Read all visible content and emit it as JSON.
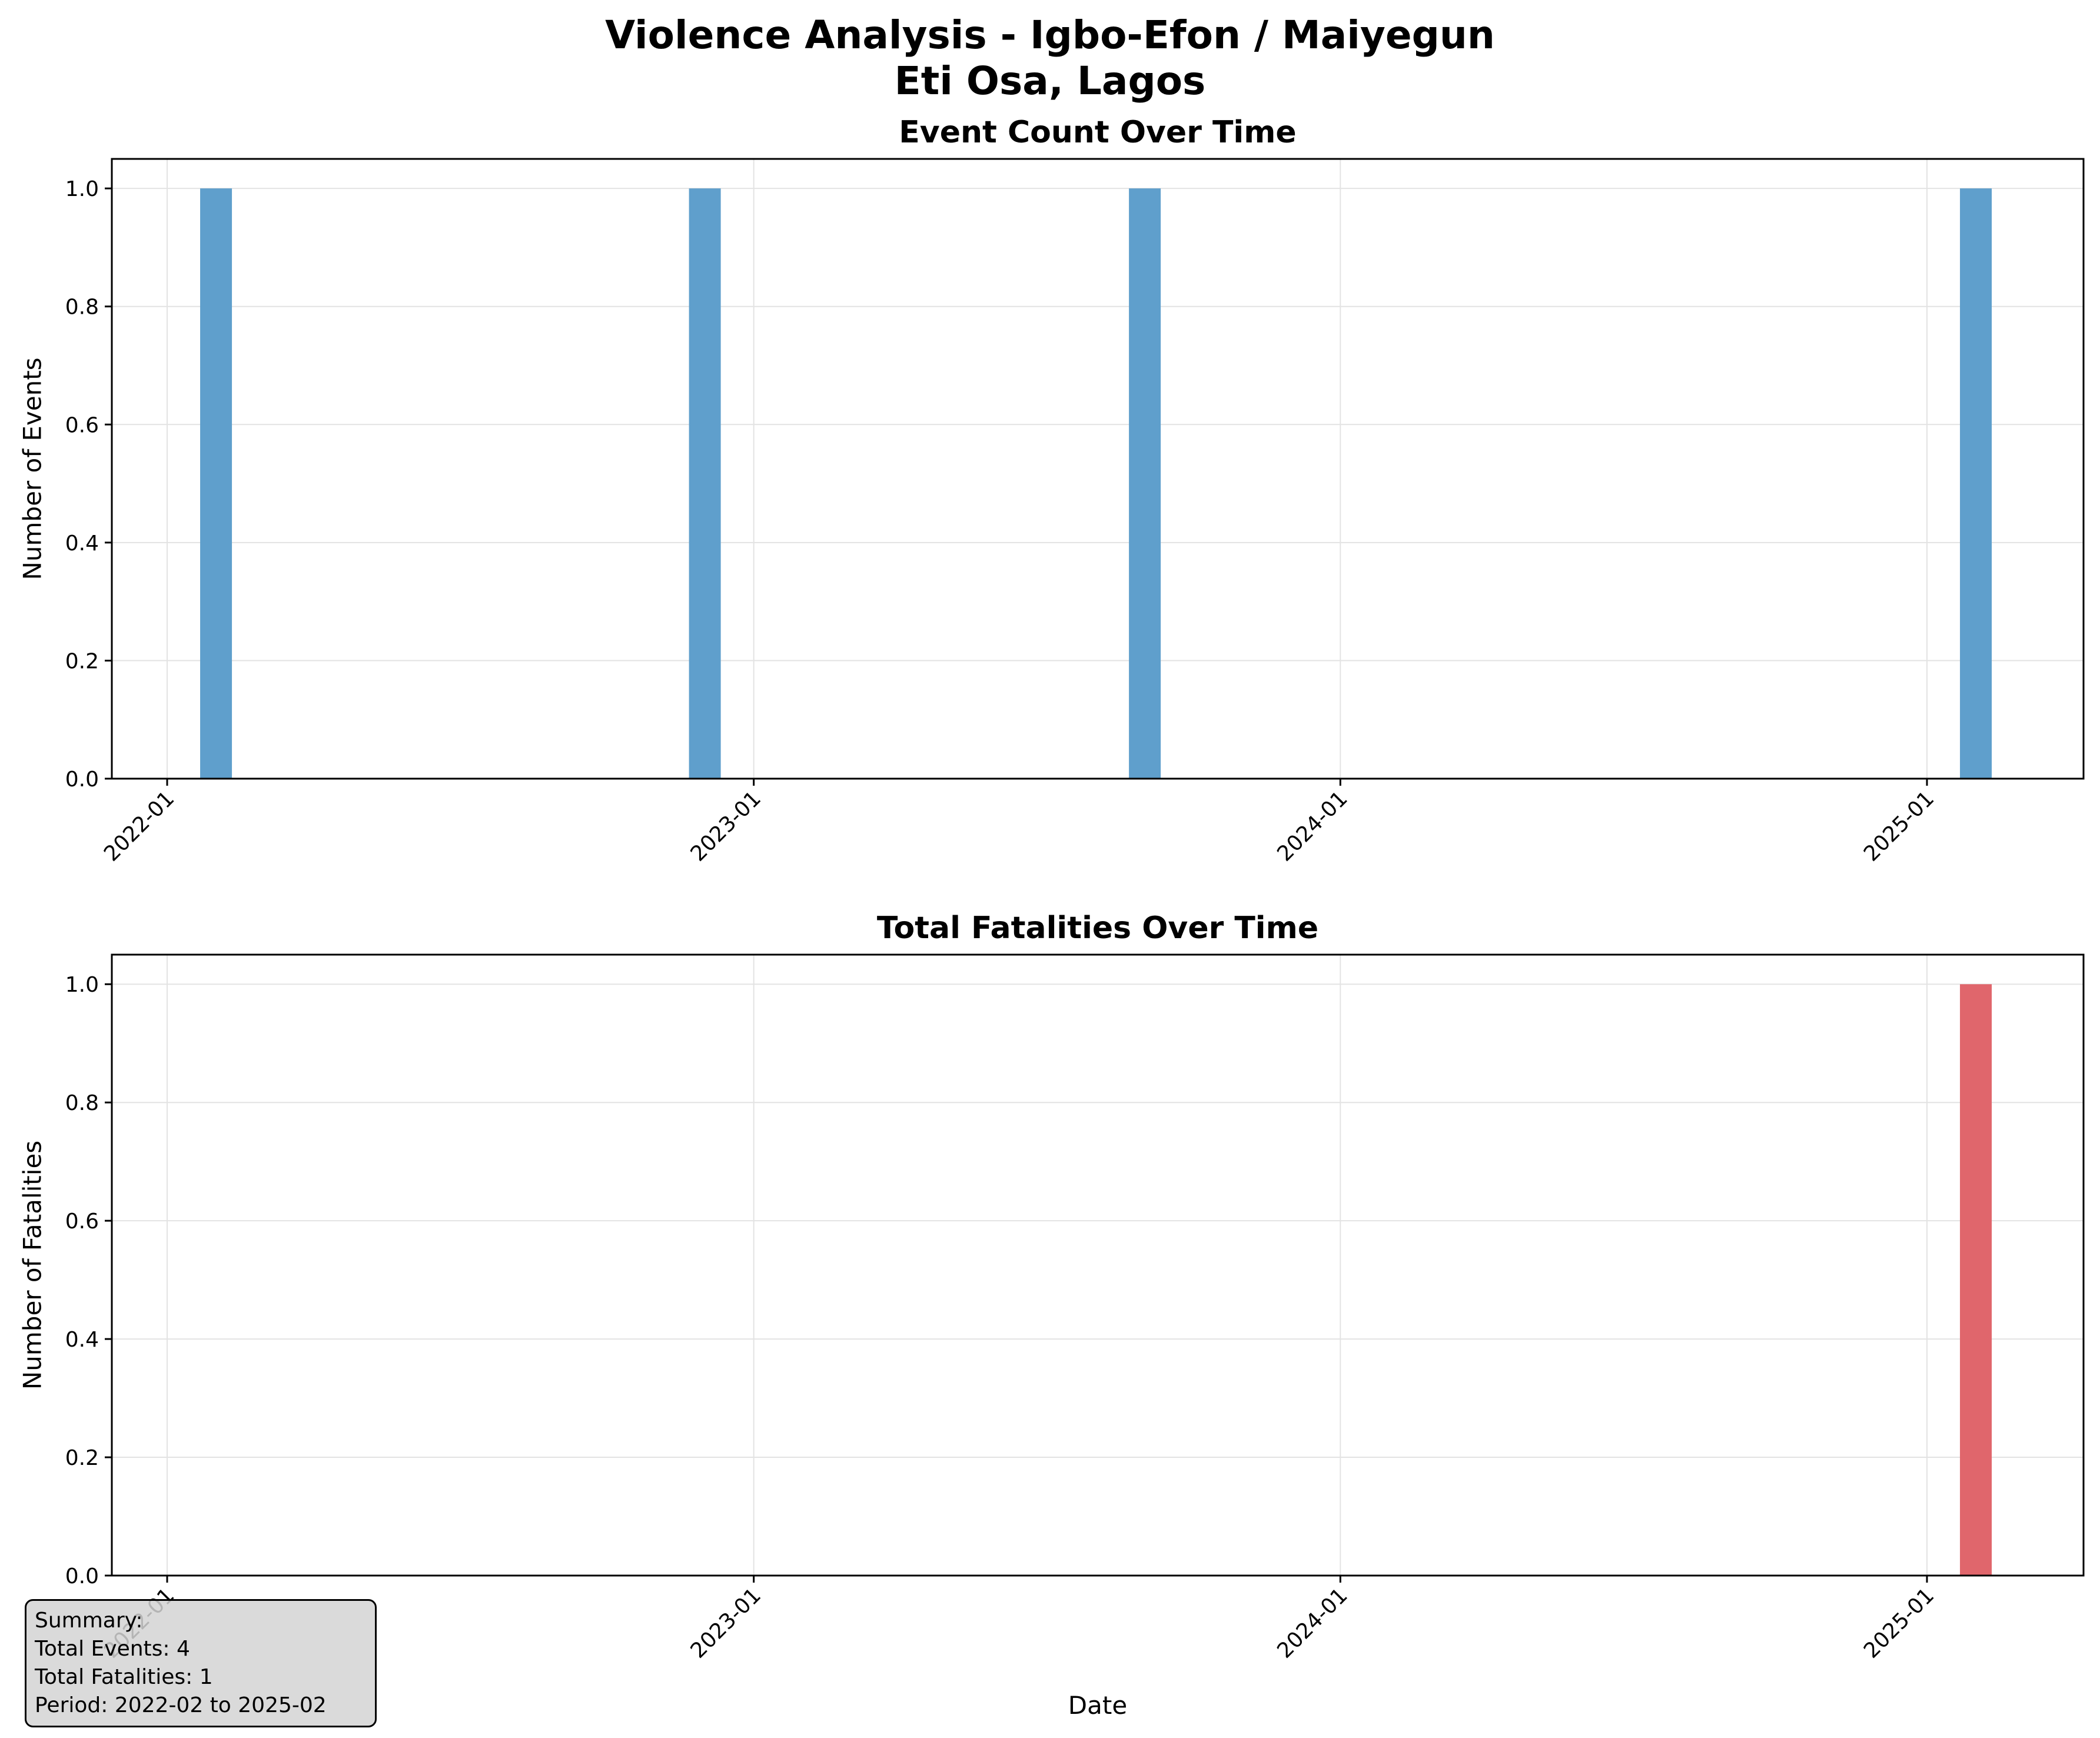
{
  "figure": {
    "title_line1": "Violence Analysis - Igbo-Efon / Maiyegun",
    "title_line2": "Eti Osa, Lagos"
  },
  "summary": {
    "heading": "Summary:",
    "total_events": "Total Events: 4",
    "total_fatalities": "Total Fatalities: 1",
    "period": "Period: 2022-02 to 2025-02"
  },
  "colors": {
    "events_bar": "#5f9fcc",
    "fatalities_bar": "#e0666c",
    "grid": "#e3e3e3"
  },
  "chart_data": [
    {
      "type": "bar",
      "title": "Event Count Over Time",
      "xlabel": "",
      "ylabel": "Number of Events",
      "x_ticks": [
        "2022-01",
        "2023-01",
        "2024-01",
        "2025-01"
      ],
      "y_ticks": [
        "0.0",
        "0.2",
        "0.4",
        "0.6",
        "0.8",
        "1.0"
      ],
      "ylim": [
        0,
        1.05
      ],
      "grid": true,
      "color": "#5f9fcc",
      "x": [
        "2022-02",
        "2022-12",
        "2023-09",
        "2025-02"
      ],
      "values": [
        1,
        1,
        1,
        1
      ]
    },
    {
      "type": "bar",
      "title": "Total Fatalities Over Time",
      "xlabel": "Date",
      "ylabel": "Number of Fatalities",
      "x_ticks": [
        "2022-01",
        "2023-01",
        "2024-01",
        "2025-01"
      ],
      "y_ticks": [
        "0.0",
        "0.2",
        "0.4",
        "0.6",
        "0.8",
        "1.0"
      ],
      "ylim": [
        0,
        1.05
      ],
      "grid": true,
      "color": "#e0666c",
      "x": [
        "2022-02",
        "2022-12",
        "2023-09",
        "2025-02"
      ],
      "values": [
        0,
        0,
        0,
        1
      ]
    }
  ]
}
